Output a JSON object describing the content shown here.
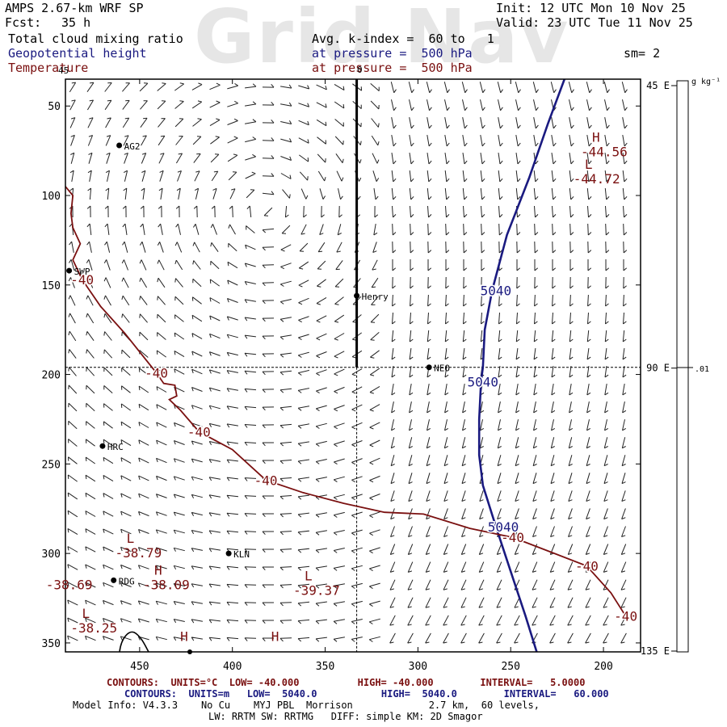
{
  "watermark": "Grid Nav",
  "header": {
    "model": "AMPS 2.67-km WRF SP",
    "fcst_label": "Fcst:",
    "fcst_value": "35 h",
    "init": "Init: 12 UTC Mon 10 Nov 25",
    "valid": "Valid: 23 UTC Tue 11 Nov 25",
    "field1": "Total cloud mixing ratio",
    "field2": "Geopotential height",
    "field3": "Temperature",
    "avg": "Avg. k-index =  60 to   1",
    "pressure1": "at pressure =  500 hPa",
    "pressure2": "at pressure =  500 hPa",
    "sm": "sm= 2"
  },
  "colors": {
    "height": "#1a1a80",
    "temperature": "#7a1010",
    "frame": "#000000"
  },
  "colorbar": {
    "units": "g kg⁻¹",
    "tick": ".01"
  },
  "map_labels": {
    "top_tick": "0",
    "corner_45": "45",
    "lat_labels": [
      "45 E",
      "90 E",
      "135 E"
    ]
  },
  "stations": [
    {
      "name": "AG2",
      "x": 461,
      "y": 72
    },
    {
      "name": "SWP",
      "x": 488,
      "y": 142
    },
    {
      "name": "Henry",
      "x": 333,
      "y": 156
    },
    {
      "name": "NEO",
      "x": 294,
      "y": 196
    },
    {
      "name": "HRC",
      "x": 470,
      "y": 240
    },
    {
      "name": "KLN",
      "x": 402,
      "y": 300
    },
    {
      "name": "RDG",
      "x": 464,
      "y": 315
    }
  ],
  "extrema": [
    {
      "type": "H",
      "value": "-44.56",
      "x": 204,
      "y": 70,
      "color": "red"
    },
    {
      "type": "L",
      "value": "-44.72",
      "x": 208,
      "y": 85,
      "color": "red"
    },
    {
      "type": "L",
      "value": "-38.79",
      "x": 455,
      "y": 294,
      "color": "red"
    },
    {
      "type": "",
      "value": "-38.69",
      "x": 488,
      "y": 312,
      "color": "red"
    },
    {
      "type": "H",
      "value": "-38.09",
      "x": 440,
      "y": 312,
      "color": "red"
    },
    {
      "type": "L",
      "value": "-39.37",
      "x": 359,
      "y": 315,
      "color": "red"
    },
    {
      "type": "L",
      "value": "-38.25",
      "x": 479,
      "y": 336,
      "color": "red"
    },
    {
      "type": "H",
      "value": "",
      "x": 426,
      "y": 349,
      "color": "red"
    },
    {
      "type": "H",
      "value": "",
      "x": 377,
      "y": 349,
      "color": "red"
    }
  ],
  "contour_labels": [
    {
      "text": "-40",
      "x": 481,
      "y": 147,
      "color": "red"
    },
    {
      "text": "-40",
      "x": 441,
      "y": 199,
      "color": "red"
    },
    {
      "text": "-40",
      "x": 418,
      "y": 232,
      "color": "red"
    },
    {
      "text": "-40",
      "x": 382,
      "y": 259,
      "color": "red"
    },
    {
      "text": "-40",
      "x": 249,
      "y": 291,
      "color": "red"
    },
    {
      "text": "-40",
      "x": 209,
      "y": 307,
      "color": "red"
    },
    {
      "text": "-40",
      "x": 188,
      "y": 335,
      "color": "red"
    },
    {
      "text": "5040",
      "x": 258,
      "y": 153,
      "color": "blue"
    },
    {
      "text": "5040",
      "x": 265,
      "y": 204,
      "color": "blue"
    },
    {
      "text": "5040",
      "x": 254,
      "y": 285,
      "color": "blue"
    }
  ],
  "footer": {
    "red_line": "CONTOURS:  UNITS=°C  LOW= -40.000          HIGH= -40.000        INTERVAL=   5.0000",
    "blue_line": "CONTOURS:  UNITS=m   LOW=  5040.0           HIGH=  5040.0        INTERVAL=   60.000",
    "info1": "Model Info: V4.3.3    No Cu    MYJ PBL  Morrison             2.7 km,  60 levels,",
    "info2": "LW: RRTM SW: RRTMG   DIFF: simple KM: 2D Smagor"
  },
  "chart_data": {
    "type": "contour",
    "x_axis": {
      "ticks": [
        450,
        400,
        350,
        300,
        250,
        200
      ],
      "range": [
        490,
        180
      ],
      "reversed": true
    },
    "y_axis": {
      "ticks": [
        50,
        100,
        150,
        200,
        250,
        300,
        350
      ],
      "range": [
        35,
        355
      ],
      "reversed": true
    },
    "crosshair": {
      "x": 333,
      "y": 196
    },
    "series": [
      {
        "name": "Geopotential height",
        "level": 5040,
        "points": [
          [
            221,
            35
          ],
          [
            230,
            60
          ],
          [
            240,
            90
          ],
          [
            252,
            122
          ],
          [
            260,
            153
          ],
          [
            264,
            175
          ],
          [
            265,
            196
          ],
          [
            266,
            204
          ],
          [
            267,
            225
          ],
          [
            267,
            245
          ],
          [
            265,
            262
          ],
          [
            258,
            285
          ],
          [
            250,
            310
          ],
          [
            242,
            335
          ],
          [
            236,
            355
          ]
        ]
      },
      {
        "name": "Temperature",
        "level": -40,
        "points": [
          [
            490,
            95
          ],
          [
            486,
            100
          ],
          [
            487,
            110
          ],
          [
            486,
            118
          ],
          [
            482,
            127
          ],
          [
            486,
            136
          ],
          [
            481,
            147
          ],
          [
            471,
            162
          ],
          [
            458,
            177
          ],
          [
            448,
            190
          ],
          [
            441,
            199
          ],
          [
            437,
            205
          ],
          [
            431,
            206
          ],
          [
            430,
            212
          ],
          [
            434,
            214
          ],
          [
            428,
            220
          ],
          [
            418,
            232
          ],
          [
            400,
            242
          ],
          [
            382,
            259
          ],
          [
            362,
            266
          ],
          [
            340,
            272
          ],
          [
            318,
            277
          ],
          [
            297,
            278
          ],
          [
            272,
            286
          ],
          [
            249,
            291
          ],
          [
            229,
            299
          ],
          [
            209,
            307
          ],
          [
            196,
            322
          ],
          [
            188,
            335
          ]
        ]
      }
    ]
  }
}
